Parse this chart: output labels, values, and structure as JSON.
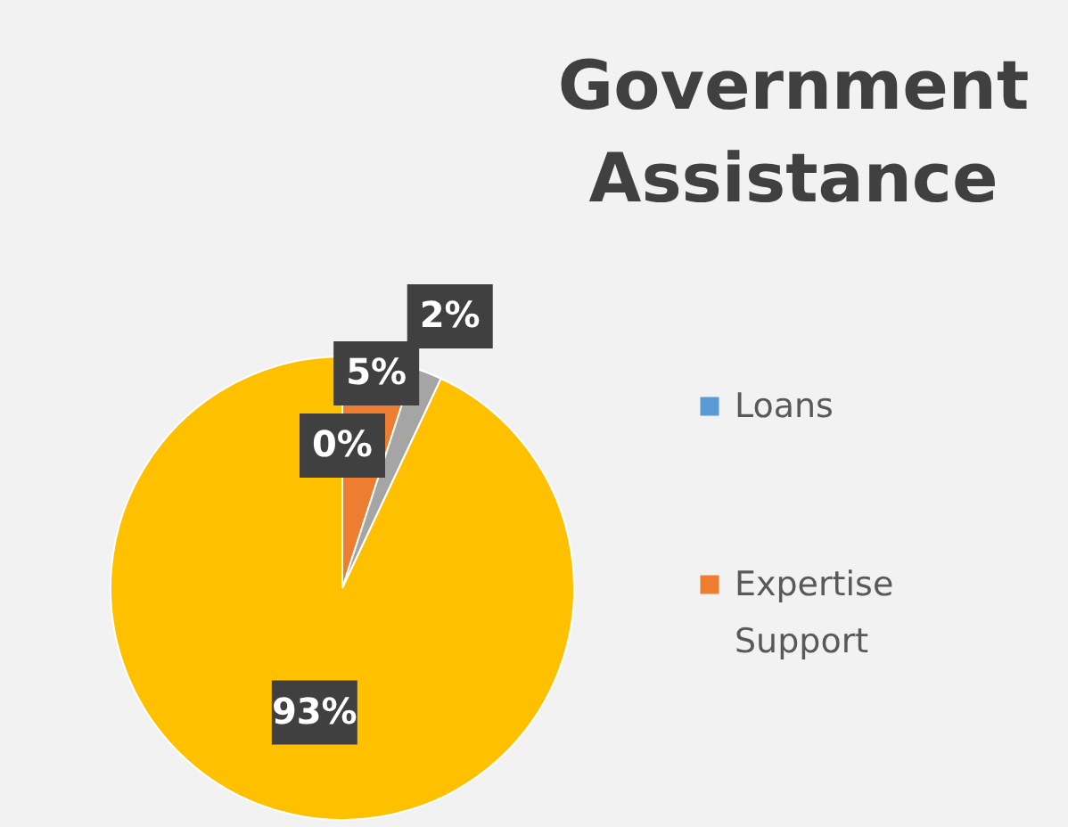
{
  "chart_data": {
    "type": "pie",
    "title": "Government Assistance",
    "categories": [
      "Loans",
      "Expertise Support",
      null,
      null
    ],
    "values": [
      0,
      5,
      2,
      93
    ],
    "colors": [
      "#5b9bd5",
      "#ed7d31",
      "#a5a5a5",
      "#ffc000"
    ],
    "value_labels": [
      "0%",
      "5%",
      "2%",
      "93%"
    ],
    "legend": "right"
  }
}
